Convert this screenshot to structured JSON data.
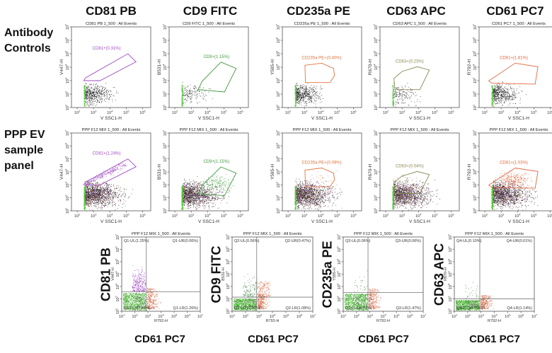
{
  "column_headers": [
    "CD81 PB",
    "CD9 FITC",
    "CD235a PE",
    "CD63 APC",
    "CD61 PC7"
  ],
  "row_labels": {
    "controls": [
      "Antibody",
      "Controls"
    ],
    "sample": [
      "PPP EV",
      "sample",
      "panel"
    ]
  },
  "bottom_side_labels": [
    "CD81 PB",
    "CD9 FITC",
    "CD235a PE",
    "CD63 APC"
  ],
  "bottom_x_labels": [
    "CD61 PC7",
    "CD61 PC7",
    "CD61 PC7",
    "CD61 PC7"
  ],
  "colors": {
    "CD81": "#a04cc4",
    "CD9": "#3f9a3f",
    "CD235a": "#e0733f",
    "CD63": "#8c8a55",
    "CD61": "#e0683f",
    "debris": "#55c83a",
    "events": "#111111"
  },
  "chart_data": [
    {
      "type": "scatter",
      "row": "controls",
      "title": "CD81 PB 1_500 : All Events",
      "xlabel": "V SSC1-H",
      "ylabel": "V447-H",
      "xscale": "log",
      "yscale": "log",
      "x_ticks": [
        2,
        3,
        4,
        5,
        6
      ],
      "y_ticks": [
        1,
        2,
        3,
        4,
        5,
        6,
        7
      ],
      "xlim_exp": [
        1.65,
        6.5
      ],
      "ylim_exp": [
        1,
        7
      ],
      "gate": {
        "label": "CD81+(0.31%)",
        "color": "#a04cc4",
        "vertices_log10": [
          [
            2.4,
            3.0
          ],
          [
            2.5,
            3.2
          ],
          [
            5.1,
            5.0
          ],
          [
            5.6,
            4.4
          ],
          [
            3.4,
            3.0
          ]
        ]
      }
    },
    {
      "type": "scatter",
      "row": "controls",
      "title": "CD9 FITC 1_500 : All Events",
      "xlabel": "V SSC1-H",
      "ylabel": "B531-H",
      "xscale": "log",
      "yscale": "log",
      "x_ticks": [
        2,
        3,
        4,
        5,
        6
      ],
      "y_ticks": [
        1,
        2,
        3,
        4,
        5,
        6,
        7
      ],
      "xlim_exp": [
        1.65,
        6.5
      ],
      "ylim_exp": [
        1,
        7
      ],
      "gate": {
        "label": "CD9+(1.15%)",
        "color": "#3f9a3f",
        "vertices_log10": [
          [
            3.43,
            2.33
          ],
          [
            3.67,
            2.95
          ],
          [
            4.82,
            4.38
          ],
          [
            5.75,
            3.91
          ],
          [
            5.03,
            2.16
          ]
        ]
      }
    },
    {
      "type": "scatter",
      "row": "controls",
      "title": "CD235a PE 1_500 : All Events",
      "xlabel": "V SSC1-H",
      "ylabel": "Y595-H",
      "xscale": "log",
      "yscale": "log",
      "x_ticks": [
        2,
        3,
        4,
        5,
        6
      ],
      "y_ticks": [
        1,
        2,
        3,
        4,
        5,
        6,
        7
      ],
      "xlim_exp": [
        1.65,
        6.5
      ],
      "ylim_exp": [
        1,
        7
      ],
      "gate": {
        "label": "CD235a PE+(0.40%)",
        "color": "#e0733f",
        "vertices_log10": [
          [
            3.03,
            4.14
          ],
          [
            4.06,
            4.3
          ],
          [
            4.78,
            3.91
          ],
          [
            4.84,
            3.38
          ],
          [
            4.56,
            2.86
          ],
          [
            3.06,
            2.86
          ]
        ]
      }
    },
    {
      "type": "scatter",
      "row": "controls",
      "title": "CD63 APC 1_500 : All Events",
      "xlabel": "V SSC1-H",
      "ylabel": "R670-H",
      "xscale": "log",
      "yscale": "log",
      "x_ticks": [
        2,
        3,
        4,
        5,
        6
      ],
      "y_ticks": [
        1,
        2,
        3,
        4,
        5,
        6,
        7
      ],
      "xlim_exp": [
        1.65,
        6.5
      ],
      "ylim_exp": [
        1,
        7
      ],
      "gate": {
        "label": "CD63+(0.23%)",
        "color": "#8c8a55",
        "vertices_log10": [
          [
            2.5,
            3.16
          ],
          [
            2.99,
            3.68
          ],
          [
            3.93,
            4.03
          ],
          [
            4.67,
            3.79
          ],
          [
            4.09,
            2.33
          ],
          [
            2.57,
            2.33
          ]
        ]
      }
    },
    {
      "type": "scatter",
      "row": "controls",
      "title": "CD61 PC7 1_500 : All Events",
      "xlabel": "V SSC1-H",
      "ylabel": "R792-H",
      "xscale": "log",
      "yscale": "log",
      "x_ticks": [
        2,
        3,
        4,
        5,
        6
      ],
      "y_ticks": [
        1,
        2,
        3,
        4,
        5,
        6,
        7
      ],
      "xlim_exp": [
        1.65,
        6.5
      ],
      "ylim_exp": [
        1,
        7
      ],
      "gate": {
        "label": "CD61+(1.81%)",
        "color": "#e0683f",
        "vertices_log10": [
          [
            2.24,
            2.98
          ],
          [
            3.86,
            4.3
          ],
          [
            5.25,
            4.03
          ],
          [
            5.08,
            2.74
          ],
          [
            2.42,
            2.81
          ]
        ]
      }
    },
    {
      "type": "scatter",
      "row": "sample",
      "title": "PPP F12 MIX 1_500 : All Events",
      "xlabel": "V SSC1-H",
      "ylabel": "V447-H",
      "xscale": "log",
      "yscale": "log",
      "x_ticks": [
        2,
        3,
        4,
        5,
        6
      ],
      "y_ticks": [
        1,
        2,
        3,
        4,
        5,
        6,
        7
      ],
      "xlim_exp": [
        1.65,
        6.5
      ],
      "ylim_exp": [
        1,
        7
      ],
      "gate": {
        "label": "CD81+(1.24%)",
        "color": "#a04cc4",
        "vertices_log10": [
          [
            2.4,
            3.0
          ],
          [
            2.5,
            3.2
          ],
          [
            5.1,
            5.0
          ],
          [
            5.6,
            4.4
          ],
          [
            3.4,
            3.0
          ]
        ]
      }
    },
    {
      "type": "scatter",
      "row": "sample",
      "title": "PPP F12 MIX 1_500 : All Events",
      "xlabel": "V SSC1-H",
      "ylabel": "B531-H",
      "xscale": "log",
      "yscale": "log",
      "x_ticks": [
        2,
        3,
        4,
        5,
        6
      ],
      "y_ticks": [
        1,
        2,
        3,
        4,
        5,
        6,
        7
      ],
      "xlim_exp": [
        1.65,
        6.5
      ],
      "ylim_exp": [
        1,
        7
      ],
      "gate": {
        "label": "CD9+(1.15%)",
        "color": "#3f9a3f",
        "vertices_log10": [
          [
            3.43,
            2.33
          ],
          [
            3.67,
            2.95
          ],
          [
            4.82,
            4.38
          ],
          [
            5.75,
            3.91
          ],
          [
            5.03,
            2.16
          ]
        ]
      }
    },
    {
      "type": "scatter",
      "row": "sample",
      "title": "PPP F12 MIX 1_500 : All Events",
      "xlabel": "V SSC1-H",
      "ylabel": "Y595-H",
      "xscale": "log",
      "yscale": "log",
      "x_ticks": [
        2,
        3,
        4,
        5,
        6
      ],
      "y_ticks": [
        1,
        2,
        3,
        4,
        5,
        6,
        7
      ],
      "xlim_exp": [
        1.65,
        6.5
      ],
      "ylim_exp": [
        1,
        7
      ],
      "gate": {
        "label": "CD235a PE+(0.09%)",
        "color": "#e0733f",
        "vertices_log10": [
          [
            3.03,
            4.14
          ],
          [
            4.06,
            4.3
          ],
          [
            4.78,
            3.91
          ],
          [
            4.84,
            3.38
          ],
          [
            4.56,
            2.86
          ],
          [
            3.06,
            2.86
          ]
        ]
      }
    },
    {
      "type": "scatter",
      "row": "sample",
      "title": "PPP F12 MIX 1_500 : All Events",
      "xlabel": "V SSC1-H",
      "ylabel": "R670-H",
      "xscale": "log",
      "yscale": "log",
      "x_ticks": [
        2,
        3,
        4,
        5,
        6
      ],
      "y_ticks": [
        1,
        2,
        3,
        4,
        5,
        6,
        7
      ],
      "xlim_exp": [
        1.65,
        6.5
      ],
      "ylim_exp": [
        1,
        7
      ],
      "gate": {
        "label": "CD63+(0.04%)",
        "color": "#8c8a55",
        "vertices_log10": [
          [
            2.5,
            3.16
          ],
          [
            2.99,
            3.68
          ],
          [
            3.93,
            4.03
          ],
          [
            4.67,
            3.79
          ],
          [
            4.09,
            2.33
          ],
          [
            2.57,
            2.33
          ]
        ]
      }
    },
    {
      "type": "scatter",
      "row": "sample",
      "title": "PPP F12 MIX 1_500 : All Events",
      "xlabel": "V SSC1-H",
      "ylabel": "R792-H",
      "xscale": "log",
      "yscale": "log",
      "x_ticks": [
        2,
        3,
        4,
        5,
        6
      ],
      "y_ticks": [
        1,
        2,
        3,
        4,
        5,
        6,
        7
      ],
      "xlim_exp": [
        1.65,
        6.5
      ],
      "ylim_exp": [
        1,
        7
      ],
      "gate": {
        "label": "CD61+(1.03%)",
        "color": "#e0683f",
        "vertices_log10": [
          [
            2.24,
            2.98
          ],
          [
            3.86,
            4.3
          ],
          [
            5.25,
            4.03
          ],
          [
            5.08,
            2.74
          ],
          [
            2.42,
            2.81
          ]
        ]
      }
    },
    {
      "type": "scatter",
      "row": "quadrant",
      "title": "PPP F12 MIX 1_500 : All Events",
      "xlabel": "R792-H",
      "ylabel": "V447-H",
      "xscale": "log",
      "yscale": "log",
      "x_ticks": [
        1,
        2,
        3,
        4,
        5,
        6,
        7
      ],
      "y_ticks": [
        1,
        2,
        3,
        4,
        5,
        6,
        7
      ],
      "xlim_exp": [
        1,
        7
      ],
      "ylim_exp": [
        1,
        7
      ],
      "marker_color": "#a04cc4",
      "quadrant_threshold_log10": {
        "x": 2.88,
        "y": 2.58
      },
      "quadrants": {
        "UL": "Q1-UL(1.25%)",
        "UR": "Q1-UR(0.06%)",
        "LL": "Q1-LL(97.47%)",
        "LR": "Q1-LR(1.26%)"
      }
    },
    {
      "type": "scatter",
      "row": "quadrant",
      "title": "PPP F12 MIX 1_500 : All Events",
      "xlabel": "R792-H",
      "ylabel": "B531-H",
      "xscale": "log",
      "yscale": "log",
      "x_ticks": [
        1,
        2,
        3,
        4,
        5,
        6,
        7
      ],
      "y_ticks": [
        1,
        2,
        3,
        4,
        5,
        6,
        7
      ],
      "xlim_exp": [
        1,
        7
      ],
      "ylim_exp": [
        1,
        7
      ],
      "marker_color": "#3f9a3f",
      "quadrant_threshold_log10": {
        "x": 2.83,
        "y": 2.14
      },
      "quadrants": {
        "UL": "Q2-UL(0.56%)",
        "UR": "Q2-UR(0.47%)",
        "LL": "Q2-LL(97.91%)",
        "LR": "Q2-LR(1.08%)"
      }
    },
    {
      "type": "scatter",
      "row": "quadrant",
      "title": "PPP F12 MIX 1_500 : All Events",
      "xlabel": "R792-H",
      "ylabel": "Y595-H",
      "xscale": "log",
      "yscale": "log",
      "x_ticks": [
        1,
        2,
        3,
        4,
        5,
        6,
        7
      ],
      "y_ticks": [
        1,
        2,
        3,
        4,
        5,
        6,
        7
      ],
      "xlim_exp": [
        1,
        7
      ],
      "ylim_exp": [
        1,
        7
      ],
      "marker_color": "#e0733f",
      "quadrant_threshold_log10": {
        "x": 2.86,
        "y": 2.52
      },
      "quadrants": {
        "UL": "Q3-UL(0.06%)",
        "UR": "Q3-UR(0.06%)",
        "LL": "Q3-LL(98.41%)",
        "LR": "Q3-LR(1.47%)"
      }
    },
    {
      "type": "scatter",
      "row": "quadrant",
      "title": "PPP F12 MIX 1_500 : All Events",
      "xlabel": "R792-H",
      "ylabel": "R670-H",
      "xscale": "log",
      "yscale": "log",
      "x_ticks": [
        1,
        2,
        3,
        4,
        5,
        6,
        7
      ],
      "y_ticks": [
        1,
        2,
        3,
        4,
        5,
        6,
        7
      ],
      "xlim_exp": [
        1,
        7
      ],
      "ylim_exp": [
        1,
        7
      ],
      "marker_color": "#8c8a55",
      "quadrant_threshold_log10": {
        "x": 2.91,
        "y": 2.01
      },
      "quadrants": {
        "UL": "Q4-UL(0.10%)",
        "UR": "Q4-UR(0.01%)",
        "LL": "Q4-LL(98.75%)",
        "LR": "Q4-LR(1.14%)"
      }
    }
  ]
}
